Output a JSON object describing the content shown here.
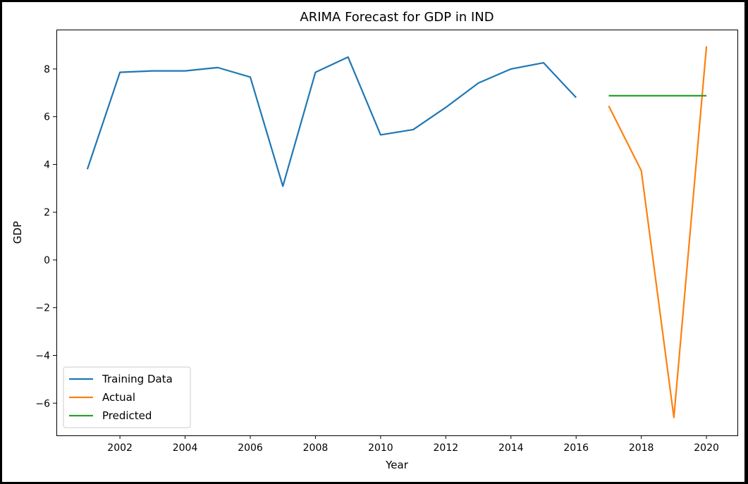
{
  "chart_data": {
    "type": "line",
    "title": "ARIMA Forecast for GDP in IND",
    "xlabel": "Year",
    "ylabel": "GDP",
    "xlim": [
      2000.05,
      2020.95
    ],
    "ylim": [
      -7.35,
      9.65
    ],
    "xticks": [
      2002,
      2004,
      2006,
      2008,
      2010,
      2012,
      2014,
      2016,
      2018,
      2020
    ],
    "xtick_labels": [
      "2002",
      "2004",
      "2006",
      "2008",
      "2010",
      "2012",
      "2014",
      "2016",
      "2018",
      "2020"
    ],
    "yticks": [
      -6,
      -4,
      -2,
      0,
      2,
      4,
      6,
      8
    ],
    "ytick_labels": [
      "−6",
      "−4",
      "−2",
      "0",
      "2",
      "4",
      "6",
      "8"
    ],
    "grid": false,
    "legend_position": "bottom-left",
    "series": [
      {
        "name": "Training Data",
        "color": "#1f77b4",
        "x": [
          2001,
          2002,
          2003,
          2004,
          2005,
          2006,
          2007,
          2008,
          2009,
          2010,
          2011,
          2012,
          2013,
          2014,
          2015,
          2016
        ],
        "y": [
          3.8,
          7.86,
          7.92,
          7.92,
          8.06,
          7.66,
          3.09,
          7.86,
          8.5,
          5.24,
          5.46,
          6.39,
          7.41,
          8.0,
          8.26,
          6.8
        ]
      },
      {
        "name": "Actual",
        "color": "#ff7f0e",
        "x": [
          2017,
          2018,
          2019,
          2020
        ],
        "y": [
          6.45,
          3.74,
          -6.6,
          8.95
        ]
      },
      {
        "name": "Predicted",
        "color": "#2ca02c",
        "x": [
          2017,
          2018,
          2019,
          2020
        ],
        "y": [
          6.88,
          6.88,
          6.88,
          6.88
        ]
      }
    ]
  }
}
